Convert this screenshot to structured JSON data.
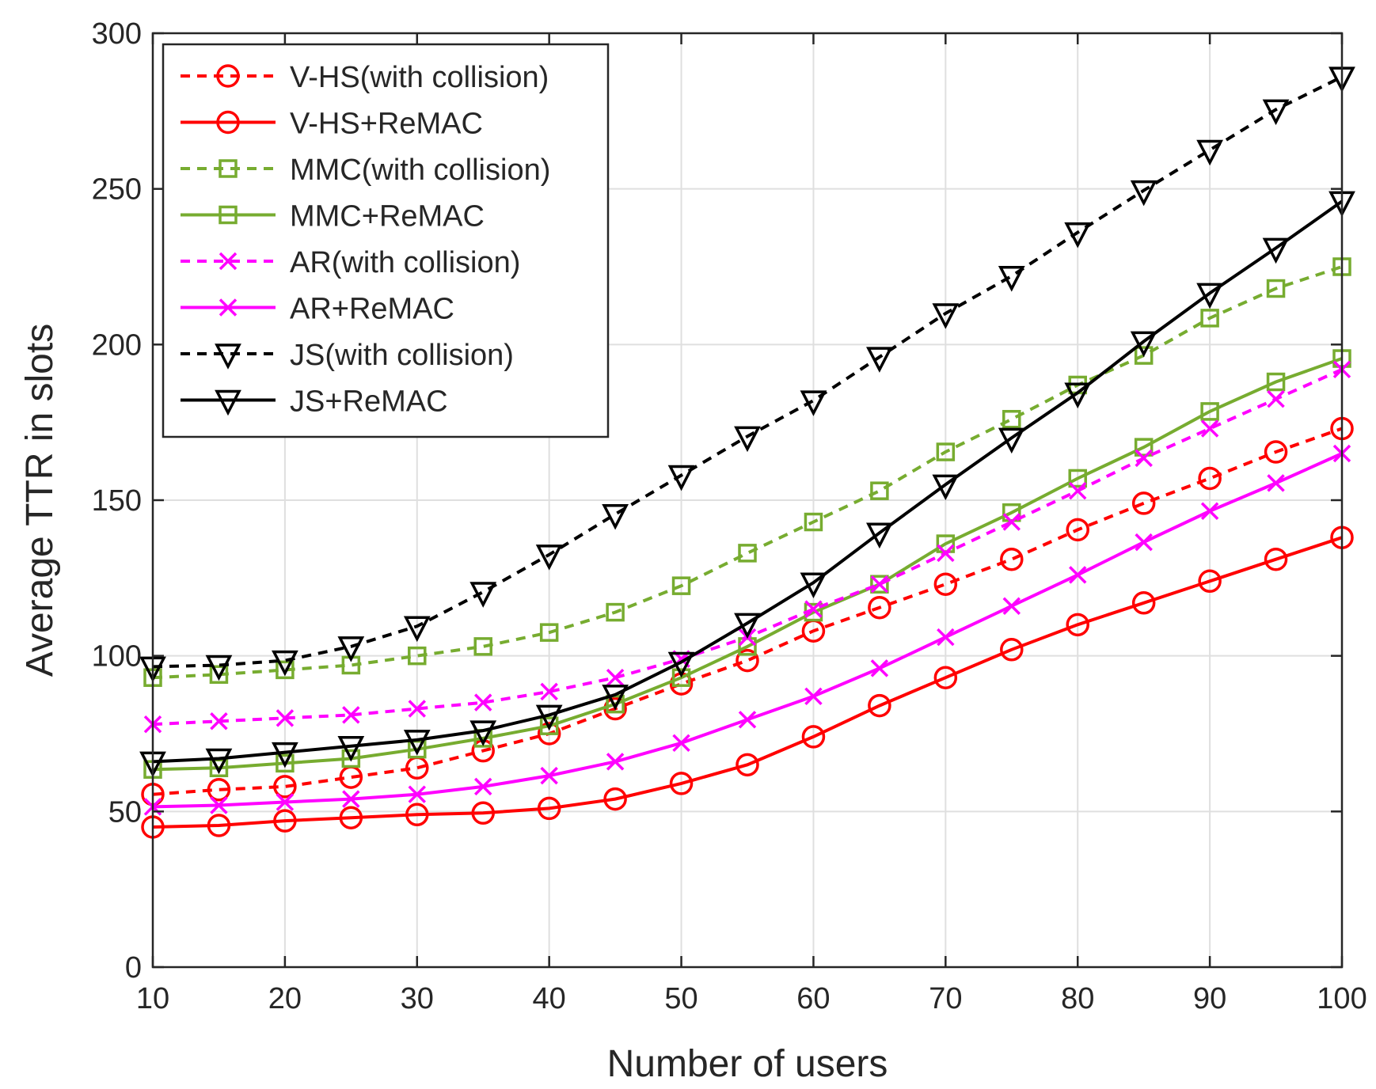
{
  "chart_data": {
    "type": "line",
    "title": "",
    "xlabel": "Number of users",
    "ylabel": "Average TTR in slots",
    "xlim": [
      10,
      100
    ],
    "ylim": [
      0,
      300
    ],
    "xticks": [
      10,
      20,
      30,
      40,
      50,
      60,
      70,
      80,
      90,
      100
    ],
    "yticks": [
      0,
      50,
      100,
      150,
      200,
      250,
      300
    ],
    "grid": true,
    "legend_position": "top-left",
    "x": [
      10,
      15,
      20,
      25,
      30,
      35,
      40,
      45,
      50,
      55,
      60,
      65,
      70,
      75,
      80,
      85,
      90,
      95,
      100
    ],
    "series": [
      {
        "name": "V-HS(with collision)",
        "color": "#ff0000",
        "dash": "dashed",
        "marker": "circle",
        "values": [
          55.5,
          57,
          58,
          61,
          64,
          69.5,
          75,
          83,
          91,
          98.5,
          108,
          115.5,
          123,
          131,
          140.5,
          149,
          157,
          165.5,
          173
        ]
      },
      {
        "name": "V-HS+ReMAC",
        "color": "#ff0000",
        "dash": "solid",
        "marker": "circle",
        "values": [
          45,
          45.5,
          47,
          48,
          49,
          49.5,
          51,
          54,
          59,
          65,
          74,
          84,
          93,
          102,
          110,
          117,
          124,
          131,
          138
        ]
      },
      {
        "name": "MMC(with collision)",
        "color": "#77ac30",
        "dash": "dashed",
        "marker": "square",
        "values": [
          93,
          94,
          95.5,
          97,
          100,
          103,
          107.5,
          114,
          122.5,
          133,
          143,
          153,
          165.5,
          176,
          187,
          196.5,
          208.5,
          218,
          225
        ]
      },
      {
        "name": "MMC+ReMAC",
        "color": "#77ac30",
        "dash": "solid",
        "marker": "square",
        "values": [
          63.5,
          64,
          65.5,
          67,
          70,
          73.5,
          77.5,
          84.5,
          93,
          103,
          114,
          123,
          136,
          146,
          157,
          167,
          178.5,
          188,
          195.5
        ]
      },
      {
        "name": "AR(with collision)",
        "color": "#ff00ff",
        "dash": "dashed",
        "marker": "x",
        "values": [
          78,
          79,
          80,
          81,
          83,
          85,
          88.5,
          93,
          99,
          106,
          115,
          123,
          133,
          143,
          153,
          163.5,
          173,
          182.5,
          192
        ]
      },
      {
        "name": "AR+ReMAC",
        "color": "#ff00ff",
        "dash": "solid",
        "marker": "x",
        "values": [
          51.5,
          52,
          53,
          54,
          55.5,
          58,
          61.5,
          66,
          72,
          79.5,
          87,
          96,
          106,
          116,
          126,
          136.5,
          146.5,
          155.5,
          165
        ]
      },
      {
        "name": "JS(with collision)",
        "color": "#000000",
        "dash": "dashed",
        "marker": "triangle-down",
        "values": [
          96.5,
          97,
          98.5,
          103,
          109.5,
          120.5,
          132.5,
          145.5,
          158,
          170.5,
          182,
          196,
          210,
          222,
          236,
          249.5,
          262.5,
          275.5,
          286
        ]
      },
      {
        "name": "JS+ReMAC",
        "color": "#000000",
        "dash": "solid",
        "marker": "triangle-down",
        "values": [
          66,
          67,
          69,
          71,
          73,
          76,
          81,
          87.5,
          98,
          110.5,
          123.5,
          139.5,
          155,
          170,
          184.5,
          201,
          216.5,
          231,
          246
        ]
      }
    ]
  }
}
